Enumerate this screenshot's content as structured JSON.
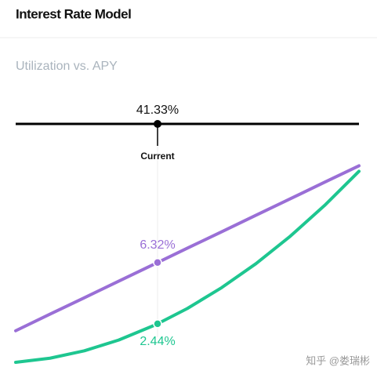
{
  "header": {
    "title": "Interest Rate Model"
  },
  "chart_data": {
    "type": "line",
    "title": "Utilization vs. APY",
    "x": [
      0,
      10,
      20,
      30,
      40,
      41.33,
      50,
      60,
      70,
      80,
      90,
      100
    ],
    "xlim": [
      0,
      100
    ],
    "ylim": [
      0,
      15.5
    ],
    "current": {
      "value": 41.33,
      "label": "41.33%"
    },
    "current_label": "Current",
    "series": [
      {
        "color": "#9a6fd6",
        "values": [
          2.0,
          3.05,
          4.09,
          5.14,
          6.18,
          6.32,
          7.23,
          8.27,
          9.32,
          10.36,
          11.41,
          12.45
        ],
        "value_labels": [
          null,
          null,
          null,
          null,
          null,
          "6.32%",
          null,
          null,
          null,
          null,
          null,
          null
        ]
      },
      {
        "color": "#1ec690",
        "values": [
          0,
          0.26,
          0.73,
          1.41,
          2.31,
          2.44,
          3.41,
          4.73,
          6.25,
          7.99,
          9.94,
          12.1
        ],
        "value_labels": [
          null,
          null,
          null,
          null,
          null,
          "2.44%",
          null,
          null,
          null,
          null,
          null,
          null
        ]
      }
    ]
  },
  "watermark": "知乎 @娄瑞彬"
}
